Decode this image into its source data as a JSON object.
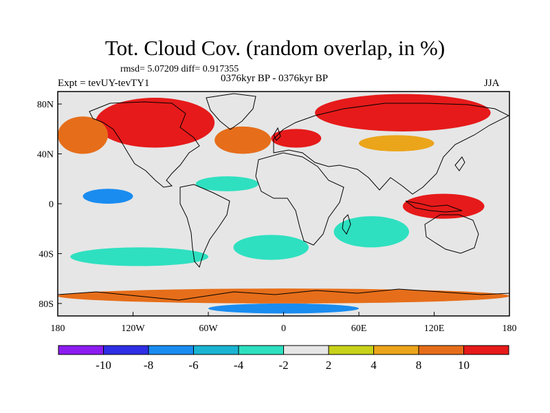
{
  "header": {
    "title": "Tot. Cloud Cov. (random overlap, in %)",
    "stats": "rmsd= 5.07209 diff= 0.917355",
    "experiment": "Expt = tevUY-tevTY1",
    "period": "0376kyr BP - 0376kyr BP",
    "season": "JJA"
  },
  "map": {
    "lon_range": [
      -180,
      180
    ],
    "lat_range": [
      -90,
      90
    ],
    "x_ticks": [
      {
        "lon": -180,
        "label": "180"
      },
      {
        "lon": -120,
        "label": "120W"
      },
      {
        "lon": -60,
        "label": "60W"
      },
      {
        "lon": 0,
        "label": "0"
      },
      {
        "lon": 60,
        "label": "60E"
      },
      {
        "lon": 120,
        "label": "120E"
      },
      {
        "lon": 180,
        "label": "180"
      }
    ],
    "y_ticks": [
      {
        "lat": 80,
        "label": "80N"
      },
      {
        "lat": 40,
        "label": "40N"
      },
      {
        "lat": 0,
        "label": "0"
      },
      {
        "lat": -40,
        "label": "40S"
      },
      {
        "lat": -80,
        "label": "80S"
      }
    ],
    "background_color": "#e6e6e6",
    "anomaly_regions": [
      {
        "name": "arctic-eurasia-high",
        "lon": [
          25,
          165
        ],
        "lat": [
          58,
          88
        ],
        "level": 5
      },
      {
        "name": "north-america-high",
        "lon": [
          -150,
          -55
        ],
        "lat": [
          45,
          85
        ],
        "level": 5
      },
      {
        "name": "north-atlantic-high",
        "lon": [
          -55,
          -10
        ],
        "lat": [
          40,
          62
        ],
        "level": 3
      },
      {
        "name": "europe-high",
        "lon": [
          -10,
          30
        ],
        "lat": [
          45,
          60
        ],
        "level": 4
      },
      {
        "name": "central-asia-positive",
        "lon": [
          60,
          120
        ],
        "lat": [
          42,
          55
        ],
        "level": 2
      },
      {
        "name": "north-pacific-positive",
        "lon": [
          -180,
          -140
        ],
        "lat": [
          40,
          70
        ],
        "level": 3
      },
      {
        "name": "maritime-continent-high",
        "lon": [
          95,
          160
        ],
        "lat": [
          -12,
          8
        ],
        "level": 4
      },
      {
        "name": "east-pacific-negative",
        "lon": [
          -160,
          -120
        ],
        "lat": [
          0,
          12
        ],
        "level": -3
      },
      {
        "name": "tropical-atlantic-negative",
        "lon": [
          -70,
          -20
        ],
        "lat": [
          10,
          22
        ],
        "level": -2
      },
      {
        "name": "south-pacific-negative",
        "lon": [
          -170,
          -60
        ],
        "lat": [
          -50,
          -35
        ],
        "level": -2
      },
      {
        "name": "south-atlantic-negative",
        "lon": [
          -40,
          20
        ],
        "lat": [
          -45,
          -25
        ],
        "level": -2
      },
      {
        "name": "indian-ocean-negative",
        "lon": [
          40,
          100
        ],
        "lat": [
          -35,
          -10
        ],
        "level": -2
      },
      {
        "name": "antarctic-coast-positive",
        "lon": [
          -180,
          180
        ],
        "lat": [
          -80,
          -68
        ],
        "level": 3
      },
      {
        "name": "antarctic-interior-negative",
        "lon": [
          -60,
          60
        ],
        "lat": [
          -88,
          -80
        ],
        "level": -3
      }
    ]
  },
  "colorbar": {
    "colors": [
      "#8c1cf0",
      "#2e2ee6",
      "#1a8cf0",
      "#1ab4d2",
      "#2ee0c0",
      "#e6e6e6",
      "#c8d21a",
      "#eba51a",
      "#e66e1a",
      "#e61a1a"
    ],
    "boundary_labels": [
      "-10",
      "-8",
      "-6",
      "-4",
      "-2",
      "2",
      "4",
      "8",
      "10"
    ]
  },
  "legend": {
    "level_colors": {
      "-4": "#2e2ee6",
      "-3": "#1a8cf0",
      "-2": "#2ee0c0",
      "-1": "#1ab4d2",
      "1": "#c8d21a",
      "2": "#eba51a",
      "3": "#e66e1a",
      "4": "#e61a1a",
      "5": "#e61a1a"
    }
  }
}
